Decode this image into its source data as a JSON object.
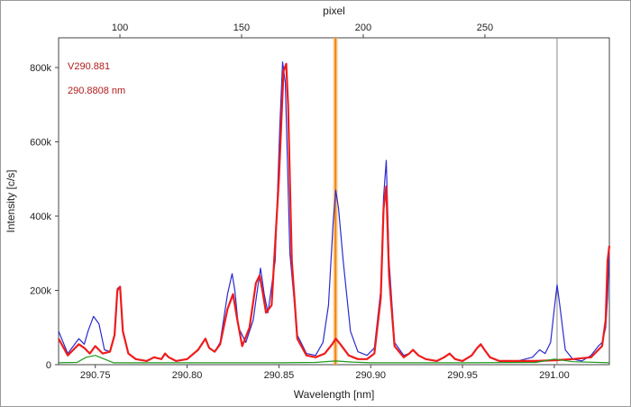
{
  "chart_data": {
    "type": "line",
    "title": "",
    "xlabel": "Wavelength [nm]",
    "ylabel": "Intensity [c/s]",
    "top_xlabel": "pixel",
    "xlim": [
      290.73,
      291.03
    ],
    "ylim": [
      0,
      880000
    ],
    "x_ticks": [
      290.75,
      290.8,
      290.85,
      290.9,
      290.95,
      291.0
    ],
    "x_tick_labels": [
      "290.75",
      "290.80",
      "290.85",
      "290.90",
      "290.95",
      "291.00"
    ],
    "y_ticks": [
      0,
      200000,
      400000,
      600000,
      800000
    ],
    "y_tick_labels": [
      "0",
      "200k",
      "400k",
      "600k",
      "800k"
    ],
    "top_ticks": [
      100,
      150,
      200,
      250
    ],
    "top_tick_labels": [
      "100",
      "150",
      "200",
      "250"
    ],
    "top_axis_map": {
      "pixel_a": 100,
      "wavelength_a": 290.7634,
      "pixel_b": 250,
      "wavelength_b": 290.9622
    },
    "grid": false,
    "legend": "none",
    "annotations": [
      "V290.881",
      "290.8808 nm"
    ],
    "markers": [
      {
        "name": "analysis line",
        "x": 290.8808,
        "color": "#f28c1c"
      },
      {
        "name": "reference line",
        "x": 291.0015,
        "color": "#888888"
      }
    ],
    "series": [
      {
        "color": "#2b2bd0",
        "x": [
          290.73,
          290.735,
          290.738,
          290.741,
          290.744,
          290.746,
          290.749,
          290.752,
          290.755,
          290.758,
          290.7605,
          290.762,
          290.7635,
          290.765,
          290.768,
          290.772,
          290.778,
          290.782,
          290.786,
          290.788,
          290.79,
          290.794,
          290.8,
          290.806,
          290.81,
          290.812,
          290.815,
          290.818,
          290.822,
          290.8245,
          290.826,
          290.828,
          290.832,
          290.836,
          290.8385,
          290.84,
          290.842,
          290.844,
          290.848,
          290.8505,
          290.852,
          290.8535,
          290.856,
          290.86,
          290.865,
          290.87,
          290.874,
          290.877,
          290.8795,
          290.881,
          290.8825,
          290.885,
          290.889,
          290.893,
          290.898,
          290.902,
          290.9055,
          290.907,
          290.9085,
          290.91,
          290.913,
          290.918,
          290.921,
          290.923,
          290.926,
          290.93,
          290.936,
          290.94,
          290.943,
          290.946,
          290.95,
          290.955,
          290.958,
          290.96,
          290.962,
          290.965,
          290.97,
          290.98,
          290.988,
          290.992,
          290.995,
          290.998,
          291.0,
          291.0015,
          291.003,
          291.006,
          291.01,
          291.015,
          291.02,
          291.024,
          291.026,
          291.028,
          291.029,
          291.03
        ],
        "values": [
          90000,
          30000,
          50000,
          70000,
          55000,
          90000,
          130000,
          110000,
          40000,
          35000,
          80000,
          205000,
          210000,
          90000,
          30000,
          15000,
          10000,
          20000,
          15000,
          30000,
          20000,
          10000,
          15000,
          40000,
          70000,
          45000,
          35000,
          60000,
          190000,
          245000,
          200000,
          100000,
          60000,
          120000,
          210000,
          260000,
          190000,
          140000,
          280000,
          640000,
          815000,
          760000,
          300000,
          80000,
          30000,
          25000,
          60000,
          160000,
          380000,
          470000,
          420000,
          280000,
          90000,
          35000,
          25000,
          45000,
          200000,
          450000,
          550000,
          280000,
          60000,
          25000,
          30000,
          40000,
          25000,
          15000,
          10000,
          20000,
          30000,
          15000,
          10000,
          25000,
          45000,
          55000,
          40000,
          20000,
          10000,
          10000,
          20000,
          40000,
          30000,
          60000,
          150000,
          215000,
          160000,
          40000,
          15000,
          10000,
          25000,
          50000,
          60000,
          100000,
          180000,
          320000
        ]
      },
      {
        "color": "#ee1c1c",
        "x": [
          290.73,
          290.735,
          290.738,
          290.741,
          290.744,
          290.747,
          290.75,
          290.754,
          290.758,
          290.7605,
          290.762,
          290.7635,
          290.765,
          290.768,
          290.772,
          290.778,
          290.782,
          290.786,
          290.788,
          290.79,
          290.794,
          290.8,
          290.806,
          290.81,
          290.812,
          290.815,
          290.818,
          290.822,
          290.825,
          290.827,
          290.83,
          290.834,
          290.8375,
          290.8395,
          290.841,
          290.843,
          290.846,
          290.85,
          290.8525,
          290.854,
          290.855,
          290.857,
          290.86,
          290.865,
          290.87,
          290.875,
          290.879,
          290.881,
          290.8835,
          290.888,
          290.893,
          290.898,
          290.902,
          290.9055,
          290.907,
          290.9085,
          290.91,
          290.913,
          290.918,
          290.921,
          290.923,
          290.926,
          290.93,
          290.936,
          290.94,
          290.943,
          290.946,
          290.95,
          290.955,
          290.958,
          290.96,
          290.962,
          290.965,
          290.97,
          290.98,
          290.99,
          291.0,
          291.01,
          291.02,
          291.026,
          291.028,
          291.029,
          291.03
        ],
        "values": [
          70000,
          25000,
          40000,
          55000,
          45000,
          30000,
          50000,
          30000,
          35000,
          80000,
          200000,
          210000,
          90000,
          30000,
          15000,
          10000,
          20000,
          15000,
          30000,
          20000,
          10000,
          15000,
          40000,
          70000,
          45000,
          35000,
          55000,
          150000,
          190000,
          130000,
          50000,
          100000,
          220000,
          240000,
          200000,
          140000,
          160000,
          500000,
          790000,
          810000,
          700000,
          280000,
          70000,
          25000,
          20000,
          30000,
          55000,
          70000,
          55000,
          25000,
          15000,
          15000,
          30000,
          180000,
          420000,
          480000,
          240000,
          50000,
          20000,
          30000,
          40000,
          25000,
          15000,
          10000,
          20000,
          30000,
          15000,
          10000,
          25000,
          45000,
          55000,
          40000,
          20000,
          10000,
          10000,
          10000,
          12000,
          15000,
          20000,
          50000,
          120000,
          280000,
          320000
        ]
      },
      {
        "color": "#1e9a1e",
        "x": [
          290.73,
          290.74,
          290.745,
          290.75,
          290.755,
          290.76,
          290.8,
          290.85,
          290.87,
          290.8808,
          290.89,
          290.9,
          290.95,
          290.99,
          291.0,
          291.01,
          291.03
        ],
        "values": [
          5000,
          6000,
          20000,
          25000,
          15000,
          5000,
          5000,
          5000,
          6000,
          10000,
          7000,
          5000,
          5000,
          6000,
          15000,
          8000,
          5000
        ]
      }
    ]
  }
}
